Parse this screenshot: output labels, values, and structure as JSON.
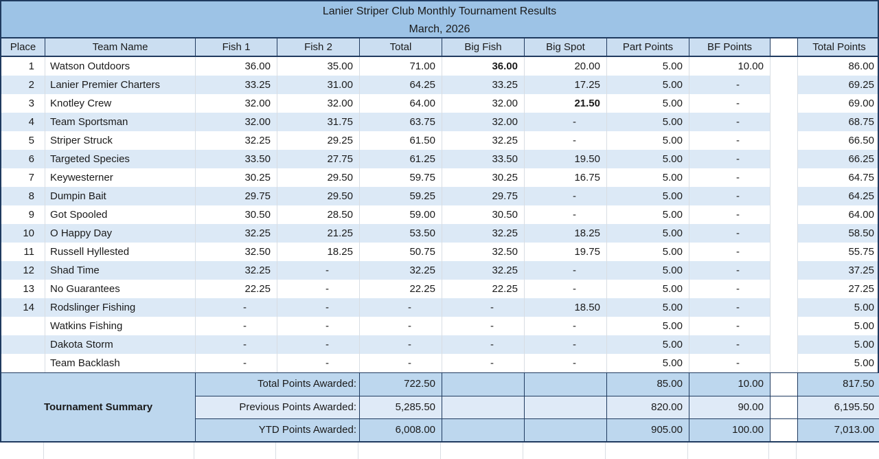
{
  "title": {
    "line1": "Lanier Striper Club Monthly Tournament Results",
    "line2": "March, 2026"
  },
  "columns": [
    "Place",
    "Team Name",
    "Fish 1",
    "Fish 2",
    "Total",
    "Big Fish",
    "Big Spot",
    "Part Points",
    "BF Points",
    "",
    "Total Points"
  ],
  "rows": [
    {
      "place": "1",
      "team": "Watson Outdoors",
      "fish1": "36.00",
      "fish2": "35.00",
      "total": "71.00",
      "big_fish": "36.00",
      "big_spot": "20.00",
      "part": "5.00",
      "bf": "10.00",
      "grand": "86.00",
      "bold": "big_fish"
    },
    {
      "place": "2",
      "team": "Lanier Premier Charters",
      "fish1": "33.25",
      "fish2": "31.00",
      "total": "64.25",
      "big_fish": "33.25",
      "big_spot": "17.25",
      "part": "5.00",
      "bf": "-",
      "grand": "69.25"
    },
    {
      "place": "3",
      "team": "Knotley Crew",
      "fish1": "32.00",
      "fish2": "32.00",
      "total": "64.00",
      "big_fish": "32.00",
      "big_spot": "21.50",
      "part": "5.00",
      "bf": "-",
      "grand": "69.00",
      "bold": "big_spot"
    },
    {
      "place": "4",
      "team": "Team Sportsman",
      "fish1": "32.00",
      "fish2": "31.75",
      "total": "63.75",
      "big_fish": "32.00",
      "big_spot": "-",
      "part": "5.00",
      "bf": "-",
      "grand": "68.75"
    },
    {
      "place": "5",
      "team": "Striper Struck",
      "fish1": "32.25",
      "fish2": "29.25",
      "total": "61.50",
      "big_fish": "32.25",
      "big_spot": "-",
      "part": "5.00",
      "bf": "-",
      "grand": "66.50"
    },
    {
      "place": "6",
      "team": "Targeted Species",
      "fish1": "33.50",
      "fish2": "27.75",
      "total": "61.25",
      "big_fish": "33.50",
      "big_spot": "19.50",
      "part": "5.00",
      "bf": "-",
      "grand": "66.25"
    },
    {
      "place": "7",
      "team": "Keywesterner",
      "fish1": "30.25",
      "fish2": "29.50",
      "total": "59.75",
      "big_fish": "30.25",
      "big_spot": "16.75",
      "part": "5.00",
      "bf": "-",
      "grand": "64.75"
    },
    {
      "place": "8",
      "team": "Dumpin Bait",
      "fish1": "29.75",
      "fish2": "29.50",
      "total": "59.25",
      "big_fish": "29.75",
      "big_spot": "-",
      "part": "5.00",
      "bf": "-",
      "grand": "64.25"
    },
    {
      "place": "9",
      "team": "Got Spooled",
      "fish1": "30.50",
      "fish2": "28.50",
      "total": "59.00",
      "big_fish": "30.50",
      "big_spot": "-",
      "part": "5.00",
      "bf": "-",
      "grand": "64.00"
    },
    {
      "place": "10",
      "team": "O Happy Day",
      "fish1": "32.25",
      "fish2": "21.25",
      "total": "53.50",
      "big_fish": "32.25",
      "big_spot": "18.25",
      "part": "5.00",
      "bf": "-",
      "grand": "58.50"
    },
    {
      "place": "11",
      "team": "Russell Hyllested",
      "fish1": "32.50",
      "fish2": "18.25",
      "total": "50.75",
      "big_fish": "32.50",
      "big_spot": "19.75",
      "part": "5.00",
      "bf": "-",
      "grand": "55.75"
    },
    {
      "place": "12",
      "team": "Shad Time",
      "fish1": "32.25",
      "fish2": "-",
      "total": "32.25",
      "big_fish": "32.25",
      "big_spot": "-",
      "part": "5.00",
      "bf": "-",
      "grand": "37.25"
    },
    {
      "place": "13",
      "team": "No Guarantees",
      "fish1": "22.25",
      "fish2": "-",
      "total": "22.25",
      "big_fish": "22.25",
      "big_spot": "-",
      "part": "5.00",
      "bf": "-",
      "grand": "27.25"
    },
    {
      "place": "14",
      "team": "Rodslinger Fishing",
      "fish1": "-",
      "fish2": "-",
      "total": "-",
      "big_fish": "-",
      "big_spot": "18.50",
      "part": "5.00",
      "bf": "-",
      "grand": "5.00"
    },
    {
      "place": "",
      "team": "Watkins Fishing",
      "fish1": "-",
      "fish2": "-",
      "total": "-",
      "big_fish": "-",
      "big_spot": "-",
      "part": "5.00",
      "bf": "-",
      "grand": "5.00"
    },
    {
      "place": "",
      "team": "Dakota Storm",
      "fish1": "-",
      "fish2": "-",
      "total": "-",
      "big_fish": "-",
      "big_spot": "-",
      "part": "5.00",
      "bf": "-",
      "grand": "5.00"
    },
    {
      "place": "",
      "team": "Team Backlash",
      "fish1": "-",
      "fish2": "-",
      "total": "-",
      "big_fish": "-",
      "big_spot": "-",
      "part": "5.00",
      "bf": "-",
      "grand": "5.00"
    }
  ],
  "summary": {
    "merged_label": "Tournament Summary",
    "rows": [
      {
        "label": "Total Points Awarded:",
        "value": "722.50",
        "big_fish": "",
        "big_spot": "",
        "part": "85.00",
        "bf": "10.00",
        "grand": "817.50",
        "shade": "medium"
      },
      {
        "label": "Previous Points Awarded:",
        "value": "5,285.50",
        "big_fish": "",
        "big_spot": "",
        "part": "820.00",
        "bf": "90.00",
        "grand": "6,195.50",
        "shade": "light"
      },
      {
        "label": "YTD Points Awarded:",
        "value": "6,008.00",
        "big_fish": "",
        "big_spot": "",
        "part": "905.00",
        "bf": "100.00",
        "grand": "7,013.00",
        "shade": "medium"
      }
    ]
  },
  "colors": {
    "title_bg": "#9DC3E6",
    "header_bg": "#CBDEF1",
    "alt_row": "#DCE9F6",
    "summary_dark": "#BDD7EE",
    "summary_light": "#DFEAF7",
    "border_dark": "#1F3A5F",
    "grid_light": "#D8DDE3"
  }
}
